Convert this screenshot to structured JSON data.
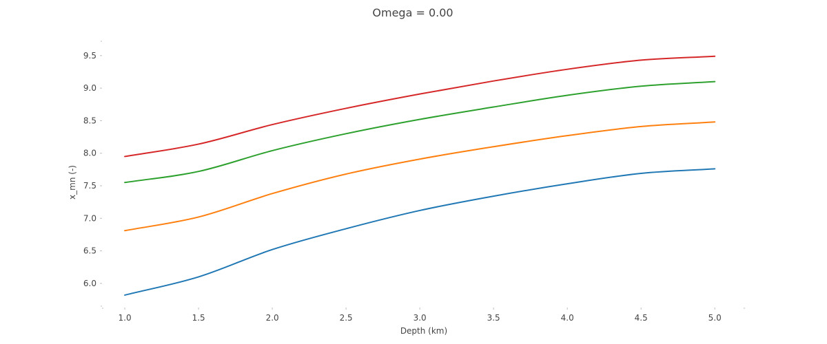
{
  "chart_data": {
    "type": "line",
    "title": "Omega = 0.00",
    "xlabel": "Depth (km)",
    "ylabel": "x_mn (-)",
    "xlim": [
      0.85,
      5.2
    ],
    "ylim": [
      5.65,
      9.72
    ],
    "x_ticks": [
      "1.0",
      "1.5",
      "2.0",
      "2.5",
      "3.0",
      "3.5",
      "4.0",
      "4.5",
      "5.0"
    ],
    "y_ticks": [
      "6.0",
      "6.5",
      "7.0",
      "7.5",
      "8.0",
      "8.5",
      "9.0",
      "9.5"
    ],
    "grid": false,
    "legend": "none",
    "x": [
      1.0,
      1.5,
      2.0,
      2.5,
      3.0,
      3.5,
      4.0,
      4.5,
      5.0
    ],
    "series": [
      {
        "color": "#1f77b4",
        "values": [
          5.82,
          6.1,
          6.52,
          6.84,
          7.12,
          7.34,
          7.53,
          7.69,
          7.76
        ]
      },
      {
        "color": "#ff7f0e",
        "values": [
          6.81,
          7.02,
          7.38,
          7.68,
          7.91,
          8.1,
          8.27,
          8.41,
          8.48
        ]
      },
      {
        "color": "#2ca02c",
        "values": [
          7.55,
          7.72,
          8.04,
          8.3,
          8.52,
          8.71,
          8.89,
          9.03,
          9.1
        ]
      },
      {
        "color": "#d62728",
        "values": [
          7.95,
          8.14,
          8.44,
          8.69,
          8.91,
          9.11,
          9.29,
          9.43,
          9.49
        ]
      }
    ]
  }
}
